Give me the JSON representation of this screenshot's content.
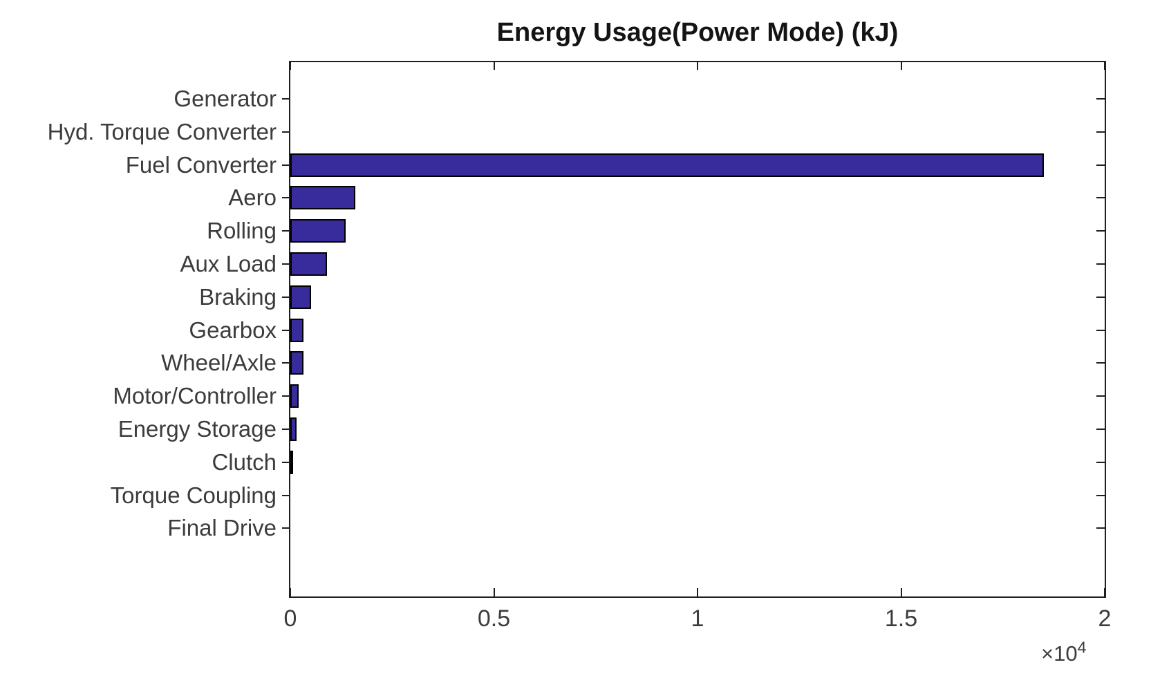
{
  "figure": {
    "background": "#ffffff"
  },
  "chart_data": {
    "type": "bar",
    "orientation": "horizontal",
    "title": "Energy Usage(Power Mode) (kJ)",
    "categories": [
      "Generator",
      "Hyd. Torque Converter",
      "Fuel Converter",
      "Aero",
      "Rolling",
      "Aux Load",
      "Braking",
      "Gearbox",
      "Wheel/Axle",
      "Motor/Controller",
      "Energy Storage",
      "Clutch",
      "Torque Coupling",
      "Final Drive"
    ],
    "values": [
      0,
      0,
      18500,
      1600,
      1350,
      900,
      510,
      320,
      330,
      200,
      160,
      70,
      0,
      0
    ],
    "units": "kJ",
    "xlabel": "",
    "ylabel": "",
    "xlim": [
      0,
      2
    ],
    "x_scale_exponent": 4,
    "x_ticks": [
      0,
      0.5,
      1,
      1.5,
      2
    ],
    "x_tick_labels": [
      "0",
      "0.5",
      "1",
      "1.5",
      "2"
    ],
    "x_multiplier_base": "×10",
    "x_multiplier_exp": "4",
    "grid": false,
    "legend": false,
    "bar_color": "#382C9C",
    "bar_edge_color": "#000000",
    "axis_color": "#1f1f1f",
    "text_color": "#3c3c3c",
    "title_color": "#141414"
  }
}
